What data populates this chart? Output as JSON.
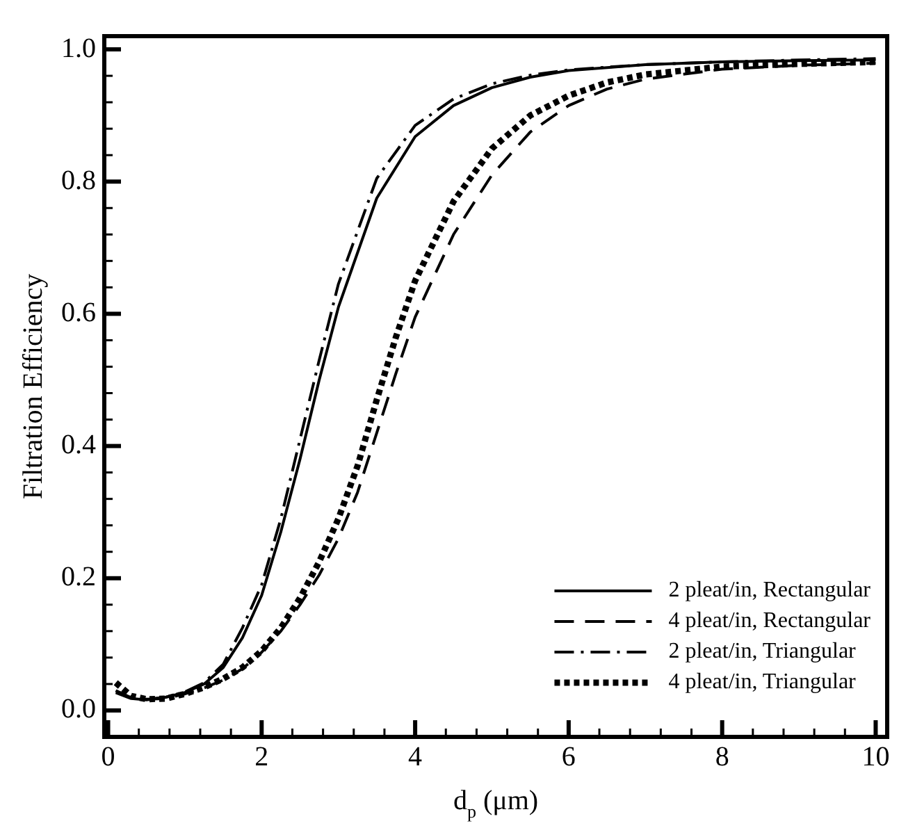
{
  "chart_data": {
    "type": "line",
    "xlabel": "d$_{p}$ (μm)",
    "ylabel": "Filtration Efficiency",
    "xlim": [
      -0.05,
      10.15
    ],
    "ylim": [
      -0.04,
      1.02
    ],
    "xticks": [
      0,
      {
        "value": 0.4,
        "label": null
      },
      {
        "value": 0.8,
        "label": null
      },
      {
        "value": 1.2,
        "label": null
      },
      {
        "value": 1.6,
        "label": null
      },
      2,
      {
        "value": 2.4,
        "label": null
      },
      {
        "value": 2.8,
        "label": null
      },
      {
        "value": 3.2,
        "label": null
      },
      {
        "value": 3.6,
        "label": null
      },
      4,
      {
        "value": 4.4,
        "label": null
      },
      {
        "value": 4.8,
        "label": null
      },
      {
        "value": 5.2,
        "label": null
      },
      {
        "value": 5.6,
        "label": null
      },
      6,
      {
        "value": 6.4,
        "label": null
      },
      {
        "value": 6.8,
        "label": null
      },
      {
        "value": 7.2,
        "label": null
      },
      {
        "value": 7.6,
        "label": null
      },
      8,
      {
        "value": 8.4,
        "label": null
      },
      {
        "value": 8.8,
        "label": null
      },
      {
        "value": 9.2,
        "label": null
      },
      {
        "value": 9.6,
        "label": null
      },
      10
    ],
    "yticks": [
      {
        "value": 0,
        "label": "0.0"
      },
      {
        "value": 0.04,
        "label": null
      },
      {
        "value": 0.08,
        "label": null
      },
      {
        "value": 0.12,
        "label": null
      },
      {
        "value": 0.16,
        "label": null
      },
      {
        "value": 0.2,
        "label": "0.2"
      },
      {
        "value": 0.24,
        "label": null
      },
      {
        "value": 0.28,
        "label": null
      },
      {
        "value": 0.32,
        "label": null
      },
      {
        "value": 0.36,
        "label": null
      },
      {
        "value": 0.4,
        "label": "0.4"
      },
      {
        "value": 0.44,
        "label": null
      },
      {
        "value": 0.48,
        "label": null
      },
      {
        "value": 0.52,
        "label": null
      },
      {
        "value": 0.56,
        "label": null
      },
      {
        "value": 0.6,
        "label": "0.6"
      },
      {
        "value": 0.64,
        "label": null
      },
      {
        "value": 0.68,
        "label": null
      },
      {
        "value": 0.72,
        "label": null
      },
      {
        "value": 0.76,
        "label": null
      },
      {
        "value": 0.8,
        "label": "0.8"
      },
      {
        "value": 0.84,
        "label": null
      },
      {
        "value": 0.88,
        "label": null
      },
      {
        "value": 0.92,
        "label": null
      },
      {
        "value": 0.96,
        "label": null
      },
      {
        "value": 1.0,
        "label": "1.0"
      }
    ],
    "grid": false,
    "legend": "bottom right",
    "marker": "none",
    "series": [
      {
        "name": "2 pleat/in, Rectangular",
        "color": "#000000",
        "line_style": "solid",
        "x": [
          0.1,
          0.3,
          0.5,
          0.75,
          1.0,
          1.25,
          1.5,
          1.75,
          2.0,
          2.25,
          2.5,
          2.75,
          3.0,
          3.5,
          4.0,
          4.5,
          5.0,
          5.5,
          6.0,
          7.0,
          8.0,
          9.0,
          10.0
        ],
        "values": [
          0.027,
          0.018,
          0.016,
          0.02,
          0.027,
          0.04,
          0.065,
          0.11,
          0.174,
          0.27,
          0.38,
          0.5,
          0.61,
          0.775,
          0.868,
          0.915,
          0.942,
          0.958,
          0.968,
          0.977,
          0.981,
          0.983,
          0.984
        ]
      },
      {
        "name": "4 pleat/in, Rectangular",
        "color": "#000000",
        "line_style": "dashed",
        "x": [
          0.1,
          0.3,
          0.5,
          0.75,
          1.0,
          1.25,
          1.5,
          1.75,
          2.0,
          2.25,
          2.5,
          2.75,
          3.0,
          3.25,
          3.5,
          3.75,
          4.0,
          4.5,
          5.0,
          5.5,
          6.0,
          6.5,
          7.0,
          8.0,
          9.0,
          10.0
        ],
        "values": [
          0.03,
          0.019,
          0.017,
          0.018,
          0.025,
          0.034,
          0.046,
          0.063,
          0.088,
          0.12,
          0.16,
          0.205,
          0.26,
          0.33,
          0.42,
          0.51,
          0.595,
          0.72,
          0.81,
          0.875,
          0.915,
          0.94,
          0.955,
          0.97,
          0.976,
          0.979
        ]
      },
      {
        "name": "2 pleat/in, Triangular",
        "color": "#000000",
        "line_style": "dashdot",
        "x": [
          0.1,
          0.3,
          0.5,
          0.75,
          1.0,
          1.25,
          1.5,
          1.75,
          2.0,
          2.25,
          2.5,
          2.75,
          3.0,
          3.5,
          4.0,
          4.5,
          5.0,
          5.5,
          6.0,
          7.0,
          8.0,
          9.0,
          10.0
        ],
        "values": [
          0.03,
          0.019,
          0.017,
          0.02,
          0.028,
          0.042,
          0.07,
          0.125,
          0.19,
          0.29,
          0.41,
          0.53,
          0.645,
          0.805,
          0.885,
          0.925,
          0.948,
          0.961,
          0.969,
          0.977,
          0.981,
          0.984,
          0.986
        ]
      },
      {
        "name": "4 pleat/in, Triangular",
        "color": "#000000",
        "line_style": "dotted",
        "x": [
          0.1,
          0.3,
          0.5,
          0.75,
          1.0,
          1.25,
          1.5,
          1.75,
          2.0,
          2.25,
          2.5,
          2.75,
          3.0,
          3.25,
          3.5,
          3.75,
          4.0,
          4.5,
          5.0,
          5.5,
          6.0,
          6.5,
          7.0,
          8.0,
          9.0,
          10.0
        ],
        "values": [
          0.042,
          0.022,
          0.017,
          0.018,
          0.025,
          0.035,
          0.048,
          0.065,
          0.09,
          0.125,
          0.17,
          0.225,
          0.29,
          0.37,
          0.47,
          0.565,
          0.65,
          0.77,
          0.85,
          0.9,
          0.93,
          0.95,
          0.962,
          0.974,
          0.978,
          0.981
        ]
      }
    ]
  }
}
